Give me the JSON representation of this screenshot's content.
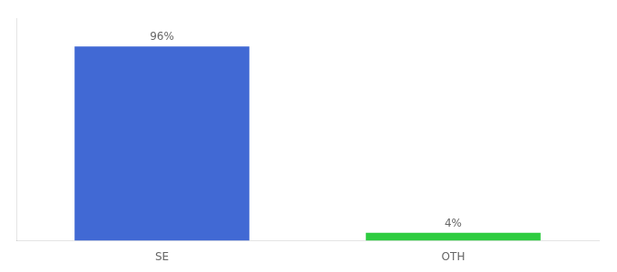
{
  "chart_data": {
    "type": "bar",
    "categories": [
      "SE",
      "OTH"
    ],
    "values": [
      96,
      4
    ],
    "value_labels": [
      "96%",
      "4%"
    ],
    "data_labels": true,
    "colors": [
      "#4169d4",
      "#2ecc40"
    ],
    "ylim": [
      0,
      110
    ],
    "tick_labels": "x",
    "grid": false,
    "legend": false
  }
}
